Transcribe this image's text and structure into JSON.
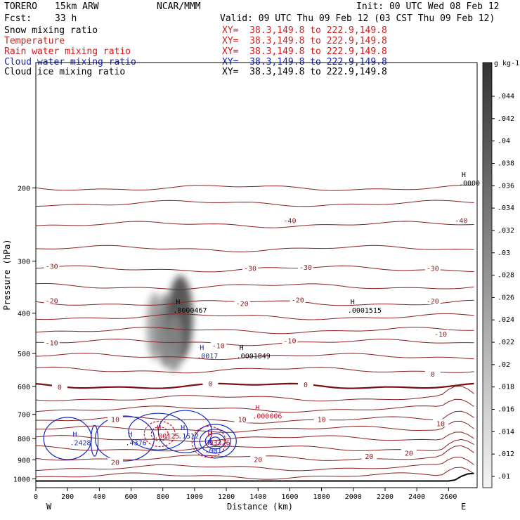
{
  "header": {
    "model": "TORERO",
    "grid": "15km ARW",
    "org": "NCAR/MMM",
    "init": "Init: 00 UTC Wed 08 Feb 12",
    "fcst_label": "Fcst:",
    "fcst_value": "33 h",
    "valid": "Valid: 09 UTC Thu 09 Feb 12 (03 CST Thu 09 Feb 12)"
  },
  "fields": [
    {
      "name": "Snow mixing ratio",
      "xy": "XY=  38.3,149.8 to 222.9,149.8",
      "color": "#000000"
    },
    {
      "name": "Temperature",
      "xy": "XY=  38.3,149.8 to 222.9,149.8",
      "color": "#cc2222"
    },
    {
      "name": "Rain water mixing ratio",
      "xy": "XY=  38.3,149.8 to 222.9,149.8",
      "color": "#dd1111"
    },
    {
      "name": "Cloud water mixing ratio",
      "xy": "XY=  38.3,149.8 to 222.9,149.8",
      "color": "#1122bb"
    },
    {
      "name": "Cloud ice mixing ratio",
      "xy": "XY=  38.3,149.8 to 222.9,149.8",
      "color": "#000000"
    }
  ],
  "chart_data": {
    "type": "cross-section",
    "xlabel": "Distance (km)",
    "ylabel": "Pressure (hPa)",
    "xlim": [
      0,
      2780
    ],
    "ylim": [
      1050,
      100
    ],
    "y_scale": "log",
    "x_ticks": [
      0,
      200,
      400,
      600,
      800,
      1000,
      1200,
      1400,
      1600,
      1800,
      2000,
      2200,
      2400,
      2600
    ],
    "y_ticks": [
      200,
      300,
      400,
      500,
      600,
      700,
      800,
      900,
      1000
    ],
    "x_end_labels": {
      "left": "W",
      "right": "E"
    },
    "colorbar": {
      "unit": "g kg-1",
      "ticks": [
        ".01",
        ".012",
        ".014",
        ".016",
        ".018",
        ".02",
        ".022",
        ".024",
        ".026",
        ".028",
        ".03",
        ".032",
        ".034",
        ".036",
        ".038",
        ".04",
        ".042",
        ".044"
      ]
    },
    "temperature_isotherms": [
      {
        "label": "-40",
        "label_positions": [
          [
            1600,
            240
          ],
          [
            2680,
            240
          ]
        ]
      },
      {
        "label": "-30",
        "label_positions": [
          [
            100,
            309
          ],
          [
            1350,
            313
          ],
          [
            1700,
            311
          ],
          [
            2500,
            313
          ]
        ]
      },
      {
        "label": "-20",
        "label_positions": [
          [
            100,
            374
          ],
          [
            1300,
            380
          ],
          [
            1650,
            373
          ],
          [
            2500,
            375
          ]
        ]
      },
      {
        "label": "-10",
        "label_positions": [
          [
            100,
            472
          ],
          [
            1150,
            480
          ],
          [
            1600,
            467
          ],
          [
            2550,
            450
          ]
        ]
      },
      {
        "label": "0",
        "label_positions": [
          [
            150,
            604
          ],
          [
            1100,
            592
          ],
          [
            1700,
            595
          ],
          [
            2500,
            562
          ]
        ]
      },
      {
        "label": "10",
        "label_positions": [
          [
            500,
            722
          ],
          [
            1300,
            722
          ],
          [
            1800,
            722
          ],
          [
            2550,
            738
          ]
        ]
      },
      {
        "label": "20",
        "label_positions": [
          [
            500,
            915
          ],
          [
            1400,
            900
          ],
          [
            2100,
            885
          ],
          [
            2350,
            870
          ]
        ]
      }
    ],
    "highs": [
      {
        "field": "cloud ice",
        "value": ".0000",
        "x": 2700,
        "y": 192
      },
      {
        "field": "snow",
        "value": ".0000467",
        "x": 900,
        "y": 388
      },
      {
        "field": "cloud ice",
        "value": ".0001515",
        "x": 2000,
        "y": 388
      },
      {
        "field": "cloud water",
        "value": ".0017",
        "x": 1050,
        "y": 500
      },
      {
        "field": "cloud ice",
        "value": ".0001849",
        "x": 1300,
        "y": 500
      },
      {
        "field": "rain",
        "value": ".000006",
        "x": 1400,
        "y": 697
      },
      {
        "field": "cloud water",
        "value": ".2428",
        "x": 250,
        "y": 808
      },
      {
        "field": "cloud water",
        "value": ".4376",
        "x": 600,
        "y": 808
      },
      {
        "field": "rain",
        "value": ".00125",
        "x": 780,
        "y": 778
      },
      {
        "field": "cloud water",
        "value": ".1512",
        "x": 930,
        "y": 778
      },
      {
        "field": "rain",
        "value": ".03326",
        "x": 1100,
        "y": 808
      },
      {
        "field": "cloud water",
        "value": ".001",
        "x": 1100,
        "y": 845
      }
    ]
  }
}
